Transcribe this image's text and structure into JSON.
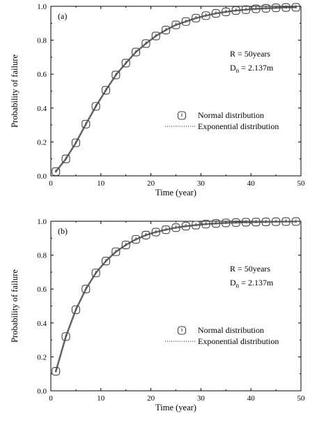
{
  "chart_data": [
    {
      "type": "line",
      "panel_label": "(a)",
      "xlabel": "Time (year)",
      "ylabel": "Probability of failure",
      "xlim": [
        0,
        50
      ],
      "ylim": [
        0.0,
        1.0
      ],
      "x_ticks": [
        0,
        10,
        20,
        30,
        40,
        50
      ],
      "y_ticks": [
        "0.0",
        "0.2",
        "0.4",
        "0.6",
        "0.8",
        "1.0"
      ],
      "annotation_line1": "R = 50years",
      "annotation_line2_main": "D",
      "annotation_line2_sub": "n",
      "annotation_line2_rest": " = 2.137m",
      "legend_position": "center-right",
      "series": [
        {
          "name": "Normal distribution",
          "marker": "rounded-square",
          "x": [
            1,
            3,
            5,
            7,
            9,
            11,
            13,
            15,
            17,
            19,
            21,
            23,
            25,
            27,
            29,
            31,
            33,
            35,
            37,
            39,
            41,
            43,
            45,
            47,
            49
          ],
          "values": [
            0.025,
            0.1,
            0.195,
            0.305,
            0.41,
            0.505,
            0.595,
            0.665,
            0.73,
            0.78,
            0.825,
            0.86,
            0.89,
            0.91,
            0.93,
            0.945,
            0.958,
            0.967,
            0.975,
            0.98,
            0.985,
            0.988,
            0.991,
            0.993,
            0.994
          ]
        },
        {
          "name": "Exponential distribution",
          "marker": "dotted-line",
          "x": [
            1,
            3,
            5,
            7,
            9,
            11,
            13,
            15,
            17,
            19,
            21,
            23,
            25,
            27,
            29,
            31,
            33,
            35,
            37,
            39,
            41,
            43,
            45,
            47,
            49
          ],
          "values": [
            0.025,
            0.1,
            0.195,
            0.305,
            0.41,
            0.505,
            0.595,
            0.665,
            0.73,
            0.78,
            0.825,
            0.86,
            0.89,
            0.91,
            0.93,
            0.945,
            0.958,
            0.967,
            0.975,
            0.98,
            0.985,
            0.988,
            0.991,
            0.993,
            0.994
          ]
        }
      ]
    },
    {
      "type": "line",
      "panel_label": "(b)",
      "xlabel": "Time (year)",
      "ylabel": "Probability of failure",
      "xlim": [
        0,
        50
      ],
      "ylim": [
        0.0,
        1.0
      ],
      "x_ticks": [
        0,
        10,
        20,
        30,
        40,
        50
      ],
      "y_ticks": [
        "0.0",
        "0.2",
        "0.4",
        "0.6",
        "0.8",
        "1.0"
      ],
      "annotation_line1": "R = 50years",
      "annotation_line2_main": "D",
      "annotation_line2_sub": "n",
      "annotation_line2_rest": " = 2.137m",
      "legend_position": "center-right",
      "series": [
        {
          "name": "Normal distribution",
          "marker": "rounded-square",
          "x": [
            1,
            3,
            5,
            7,
            9,
            11,
            13,
            15,
            17,
            19,
            21,
            23,
            25,
            27,
            29,
            31,
            33,
            35,
            37,
            39,
            41,
            43,
            45,
            47,
            49
          ],
          "values": [
            0.115,
            0.32,
            0.478,
            0.6,
            0.695,
            0.765,
            0.82,
            0.86,
            0.893,
            0.918,
            0.936,
            0.95,
            0.962,
            0.971,
            0.977,
            0.983,
            0.987,
            0.99,
            0.992,
            0.994,
            0.995,
            0.996,
            0.997,
            0.998,
            0.998
          ]
        },
        {
          "name": "Exponential distribution",
          "marker": "dotted-line",
          "x": [
            1,
            3,
            5,
            7,
            9,
            11,
            13,
            15,
            17,
            19,
            21,
            23,
            25,
            27,
            29,
            31,
            33,
            35,
            37,
            39,
            41,
            43,
            45,
            47,
            49
          ],
          "values": [
            0.115,
            0.32,
            0.478,
            0.6,
            0.695,
            0.765,
            0.82,
            0.86,
            0.893,
            0.918,
            0.936,
            0.95,
            0.962,
            0.971,
            0.977,
            0.983,
            0.987,
            0.99,
            0.992,
            0.994,
            0.995,
            0.996,
            0.997,
            0.998,
            0.998
          ]
        }
      ]
    }
  ],
  "colors": {
    "curve": "#707070",
    "marker_stroke": "#444444",
    "axis": "#000000"
  }
}
